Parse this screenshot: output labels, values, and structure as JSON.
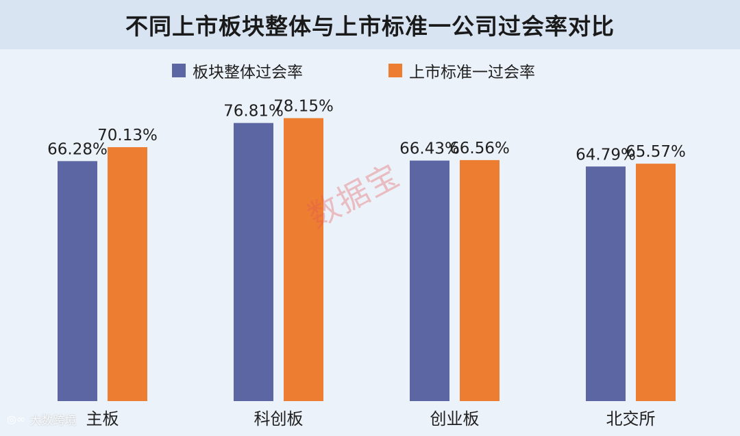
{
  "colors": {
    "series1": "#5c66a3",
    "series2": "#ed7d31",
    "background": "#ecf2f9",
    "title_bg": "#d8e4f1"
  },
  "watermark": {
    "stamp": "数据宝",
    "source": "大数跨境"
  },
  "chart_data": {
    "type": "bar",
    "title": "不同上市板块整体与上市标准一公司过会率对比",
    "categories": [
      "主板",
      "科创板",
      "创业板",
      "北交所"
    ],
    "series": [
      {
        "name": "板块整体过会率",
        "values": [
          66.28,
          76.81,
          66.43,
          64.79
        ],
        "labels": [
          "66.28%",
          "76.81%",
          "66.43%",
          "64.79%"
        ]
      },
      {
        "name": "上市标准一过会率",
        "values": [
          70.13,
          78.15,
          66.56,
          65.57
        ],
        "labels": [
          "70.13%",
          "78.15%",
          "66.56%",
          "65.57%"
        ]
      }
    ],
    "ylim": [
      0,
      100
    ],
    "grid": false,
    "legend": "top"
  }
}
